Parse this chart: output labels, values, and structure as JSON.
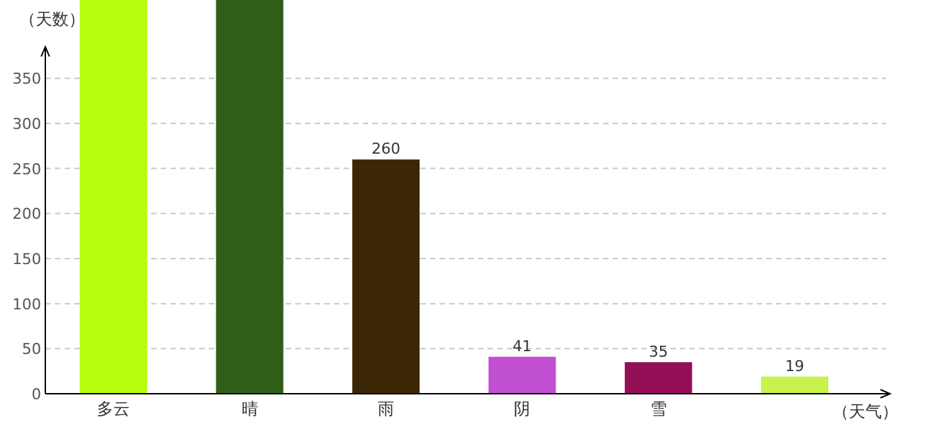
{
  "chart_data": {
    "type": "bar",
    "xlabel": "（天气）",
    "ylabel": "（天数）",
    "categories": [
      "多云",
      "晴",
      "雨",
      "阴",
      "雪",
      null
    ],
    "values": [
      437,
      437,
      260,
      41,
      35,
      19
    ],
    "value_labels": [
      null,
      null,
      "260",
      "41",
      "35",
      "19"
    ],
    "colors": [
      "#b6fc0c",
      "#2e5e18",
      "#3b2706",
      "#c14fd1",
      "#931056",
      "#c8f24c"
    ],
    "ylim": [
      0,
      437
    ],
    "yticks": [
      0,
      50,
      100,
      150,
      200,
      250,
      300,
      350
    ],
    "grid": "y"
  }
}
